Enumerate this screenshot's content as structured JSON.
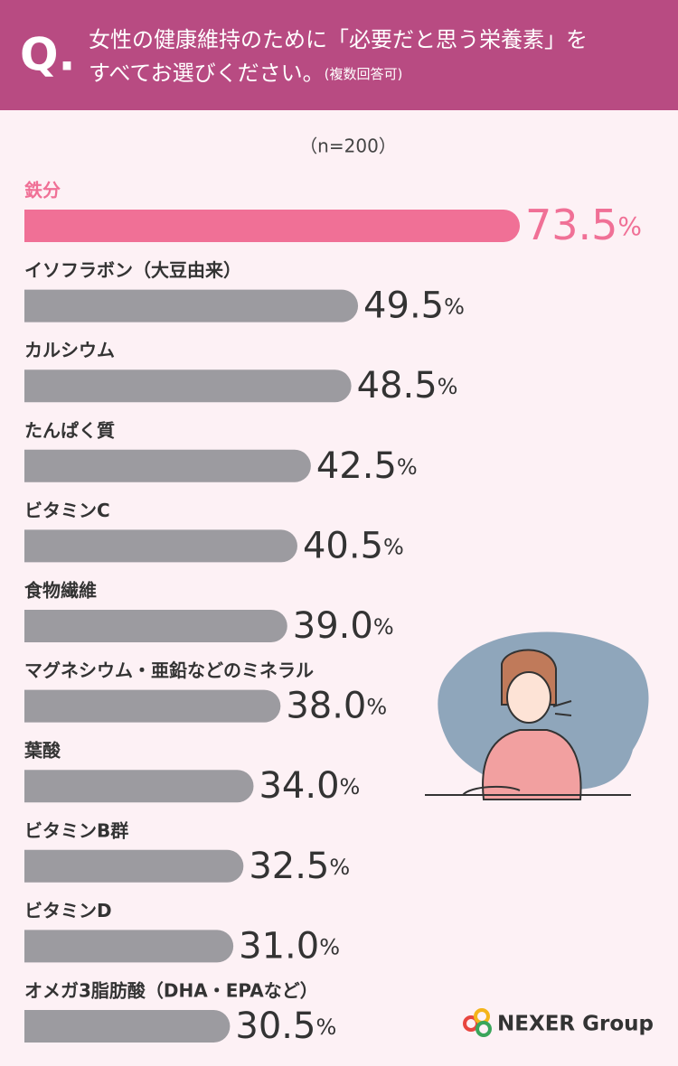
{
  "chart_data": {
    "type": "bar",
    "orientation": "horizontal",
    "question_mark": "Q.",
    "title_lines": [
      "女性の健康維持のために「必要だと思う栄養素」を",
      "すべてお選びください。"
    ],
    "title_note": "(複数回答可)",
    "subtitle": "（n=200）",
    "categories": [
      "鉄分",
      "イソフラボン（大豆由来）",
      "カルシウム",
      "たんぱく質",
      "ビタミンC",
      "食物繊維",
      "マグネシウム・亜鉛などのミネラル",
      "葉酸",
      "ビタミンB群",
      "ビタミンD",
      "オメガ3脂肪酸（DHA・EPAなど）"
    ],
    "values": [
      73.5,
      49.5,
      48.5,
      42.5,
      40.5,
      39.0,
      38.0,
      34.0,
      32.5,
      31.0,
      30.5
    ],
    "value_labels": [
      "73.5",
      "49.5",
      "48.5",
      "42.5",
      "40.5",
      "39.0",
      "38.0",
      "34.0",
      "32.5",
      "31.0",
      "30.5"
    ],
    "value_unit": "%",
    "colors": [
      "#f07096",
      "#9c9ba0",
      "#9c9ba0",
      "#9c9ba0",
      "#9c9ba0",
      "#9c9ba0",
      "#9c9ba0",
      "#9c9ba0",
      "#9c9ba0",
      "#9c9ba0",
      "#9c9ba0"
    ],
    "logo": "NEXER Group"
  }
}
